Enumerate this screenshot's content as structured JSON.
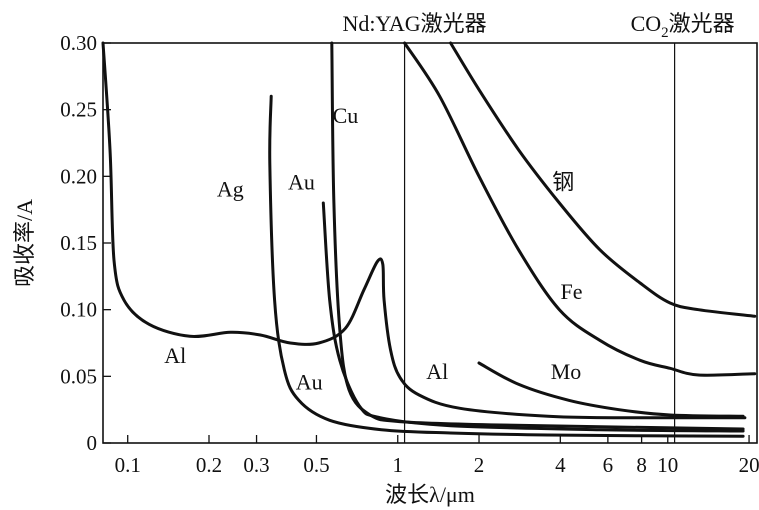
{
  "chart_data": {
    "type": "line",
    "xscale": "log",
    "xlabel": "波长λ/μm",
    "ylabel": "吸收率/A",
    "xlim": [
      0.081,
      21.4
    ],
    "ylim": [
      0,
      0.3
    ],
    "xticks": [
      0.1,
      0.2,
      0.3,
      0.5,
      1,
      2,
      4,
      6,
      8,
      10,
      20
    ],
    "xtick_labels": [
      "0.1",
      "0.2",
      "0.3",
      "0.5",
      "1",
      "2",
      "4",
      "6",
      "8",
      "10",
      "20"
    ],
    "yticks": [
      0,
      0.05,
      0.1,
      0.15,
      0.2,
      0.25,
      0.3
    ],
    "ytick_labels": [
      "0",
      "0.05",
      "0.10",
      "0.15",
      "0.20",
      "0.25",
      "0.30"
    ],
    "reference_lines": [
      {
        "x": 1.06,
        "label": "Nd:YAG激光器"
      },
      {
        "x": 10.6,
        "label": "CO",
        "sub": "2",
        "label_suffix": "激光器"
      }
    ],
    "series": [
      {
        "name": "Al",
        "x": [
          0.081,
          0.086,
          0.089,
          0.097,
          0.12,
          0.17,
          0.24,
          0.31,
          0.4,
          0.51,
          0.64,
          0.75,
          0.84,
          0.88,
          0.89,
          0.94,
          1.02,
          1.2,
          1.7,
          3.6,
          6.6,
          19.3
        ],
        "y": [
          0.3,
          0.22,
          0.137,
          0.107,
          0.089,
          0.08,
          0.083,
          0.081,
          0.075,
          0.075,
          0.086,
          0.115,
          0.136,
          0.134,
          0.107,
          0.07,
          0.049,
          0.036,
          0.026,
          0.02,
          0.019,
          0.019
        ]
      },
      {
        "name": "Ag",
        "x": [
          0.34,
          0.336,
          0.35,
          0.38,
          0.43,
          0.56,
          0.87,
          1.57,
          3.6,
          19
        ],
        "y": [
          0.26,
          0.21,
          0.107,
          0.055,
          0.032,
          0.017,
          0.01,
          0.0075,
          0.006,
          0.005
        ]
      },
      {
        "name": "Au",
        "x": [
          0.53,
          0.56,
          0.61,
          0.72,
          0.86,
          1.57,
          5.6,
          19
        ],
        "y": [
          0.18,
          0.107,
          0.062,
          0.028,
          0.019,
          0.013,
          0.01,
          0.009
        ]
      },
      {
        "name": "Cu",
        "x": [
          0.57,
          0.58,
          0.61,
          0.66,
          0.79,
          1.03,
          2.4,
          19
        ],
        "y": [
          0.3,
          0.18,
          0.085,
          0.04,
          0.021,
          0.016,
          0.0135,
          0.0105
        ]
      },
      {
        "name": "钢",
        "x": [
          1.57,
          2.0,
          2.8,
          3.97,
          5.6,
          7.9,
          10.2,
          13,
          21
        ],
        "y": [
          0.3,
          0.265,
          0.22,
          0.18,
          0.145,
          0.12,
          0.105,
          0.1,
          0.095
        ]
      },
      {
        "name": "Fe",
        "x": [
          1.06,
          1.43,
          2.0,
          2.8,
          3.97,
          5.6,
          7.9,
          10.2,
          13,
          21
        ],
        "y": [
          0.3,
          0.26,
          0.2,
          0.145,
          0.1,
          0.077,
          0.062,
          0.056,
          0.051,
          0.052
        ]
      },
      {
        "name": "Mo",
        "x": [
          2.0,
          2.8,
          4.3,
          6.6,
          10.2,
          19
        ],
        "y": [
          0.06,
          0.044,
          0.032,
          0.025,
          0.021,
          0.02
        ]
      }
    ],
    "annotations": [
      {
        "text": "Ag",
        "x": 0.24,
        "y": 0.185
      },
      {
        "text": "Au",
        "x": 0.44,
        "y": 0.19
      },
      {
        "text": "Cu",
        "x": 0.64,
        "y": 0.24
      },
      {
        "text": "Al",
        "x": 0.15,
        "y": 0.06
      },
      {
        "text": "Au",
        "x": 0.47,
        "y": 0.04
      },
      {
        "text": "Al",
        "x": 1.4,
        "y": 0.048
      },
      {
        "text": "钢",
        "x": 4.1,
        "y": 0.19
      },
      {
        "text": "Fe",
        "x": 4.4,
        "y": 0.108
      },
      {
        "text": "Mo",
        "x": 4.2,
        "y": 0.048
      }
    ]
  }
}
